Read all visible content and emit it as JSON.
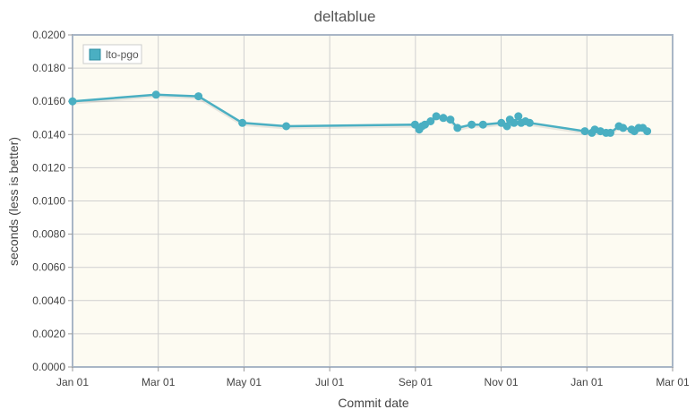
{
  "chart_data": {
    "type": "line",
    "title": "deltablue",
    "xlabel": "Commit date",
    "ylabel": "seconds (less is better)",
    "x_ticks": [
      "Jan 01",
      "Mar 01",
      "May 01",
      "Jul 01",
      "Sep 01",
      "Nov 01",
      "Jan 01",
      "Mar 01"
    ],
    "y_ticks": [
      "0.0000",
      "0.0020",
      "0.0040",
      "0.0060",
      "0.0080",
      "0.0100",
      "0.0120",
      "0.0140",
      "0.0160",
      "0.0180",
      "0.0200"
    ],
    "ylim": [
      0,
      0.02
    ],
    "xlim": [
      "2021-01-01",
      "2022-03-01"
    ],
    "grid": true,
    "legend_position": "top-left",
    "colors": {
      "series": "#4aafc2",
      "plot_background": "#fdfbf2",
      "grid": "#cfcfcf",
      "frame": "#a9b6c6"
    },
    "series": [
      {
        "name": "lto-pgo",
        "color": "#4aafc2",
        "x": [
          "2021-01-01",
          "2021-03-01",
          "2021-03-31",
          "2021-05-01",
          "2021-06-01",
          "2021-08-31",
          "2021-09-03",
          "2021-09-05",
          "2021-09-07",
          "2021-09-11",
          "2021-09-15",
          "2021-09-20",
          "2021-09-25",
          "2021-09-30",
          "2021-10-10",
          "2021-10-18",
          "2021-10-31",
          "2021-11-04",
          "2021-11-06",
          "2021-11-09",
          "2021-11-12",
          "2021-11-14",
          "2021-11-17",
          "2021-11-20",
          "2021-12-29",
          "2022-01-03",
          "2022-01-05",
          "2022-01-09",
          "2022-01-13",
          "2022-01-16",
          "2022-01-22",
          "2022-01-25",
          "2022-01-31",
          "2022-02-02",
          "2022-02-05",
          "2022-02-08",
          "2022-02-11"
        ],
        "values": [
          0.016,
          0.0164,
          0.0163,
          0.0147,
          0.0145,
          0.0146,
          0.0143,
          0.0145,
          0.0146,
          0.0148,
          0.0151,
          0.015,
          0.0149,
          0.0144,
          0.0146,
          0.0146,
          0.0147,
          0.0145,
          0.0149,
          0.0147,
          0.0151,
          0.0147,
          0.0148,
          0.0147,
          0.0142,
          0.0141,
          0.0143,
          0.0142,
          0.0141,
          0.0141,
          0.0145,
          0.0144,
          0.0143,
          0.0142,
          0.0144,
          0.0144,
          0.0142
        ]
      }
    ]
  }
}
